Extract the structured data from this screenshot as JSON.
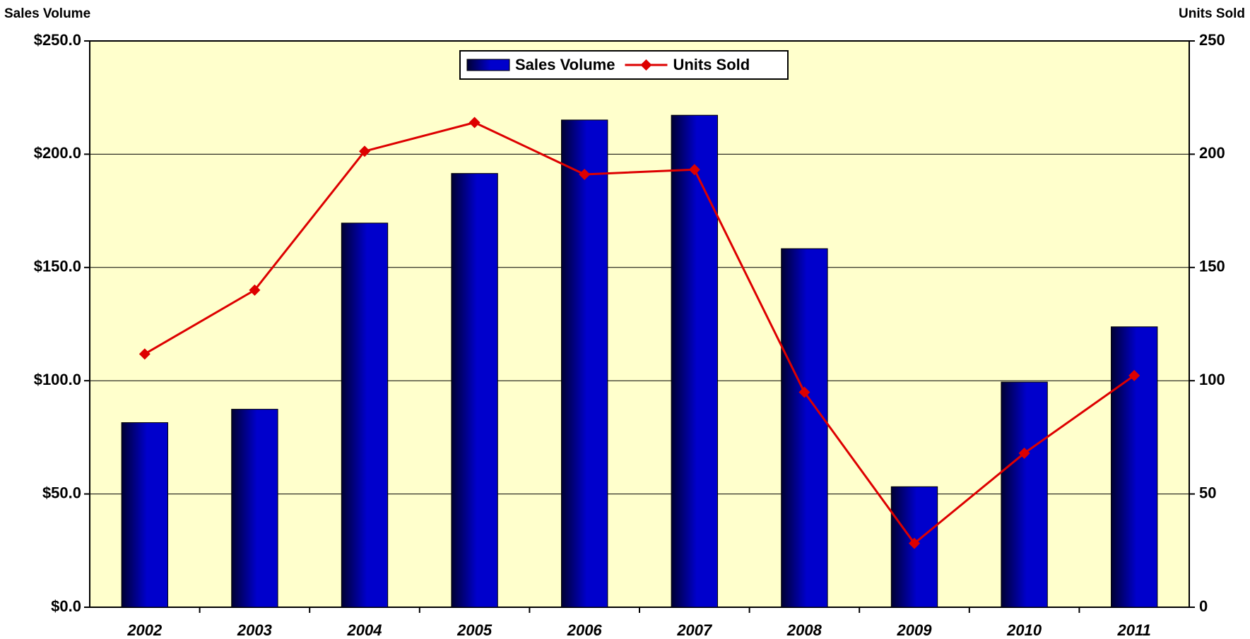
{
  "chart_data": {
    "type": "bar-line",
    "y_label": "Sales Volume",
    "y2_label": "Units Sold",
    "categories": [
      "2002",
      "2003",
      "2004",
      "2005",
      "2006",
      "2007",
      "2008",
      "2009",
      "2010",
      "2011"
    ],
    "series": [
      {
        "name": "Sales Volume",
        "type": "bar",
        "color": "#0000cc",
        "values": [
          81.5,
          87.4,
          169.6,
          191.5,
          215.1,
          217.2,
          158.3,
          53.2,
          99.4,
          123.8
        ]
      },
      {
        "name": "Units Sold",
        "type": "line",
        "axis": "y2",
        "color": "#dd0000",
        "values": [
          111.8,
          140,
          201.3,
          214,
          191.1,
          193.2,
          94.9,
          28.2,
          68,
          102.3
        ]
      }
    ],
    "ylim": [
      0,
      250
    ],
    "yticks": [
      {
        "value": 0,
        "label": "$0.0"
      },
      {
        "value": 50,
        "label": "$50.0"
      },
      {
        "value": 100,
        "label": "$100.0"
      },
      {
        "value": 150,
        "label": "$150.0"
      },
      {
        "value": 200,
        "label": "$200.0"
      },
      {
        "value": 250,
        "label": "$250.0"
      }
    ],
    "y2lim": [
      0,
      250
    ],
    "y2ticks": [
      0,
      50,
      100,
      150,
      200,
      250
    ],
    "grid": true,
    "legend": "top",
    "background": "#ffffcc"
  }
}
